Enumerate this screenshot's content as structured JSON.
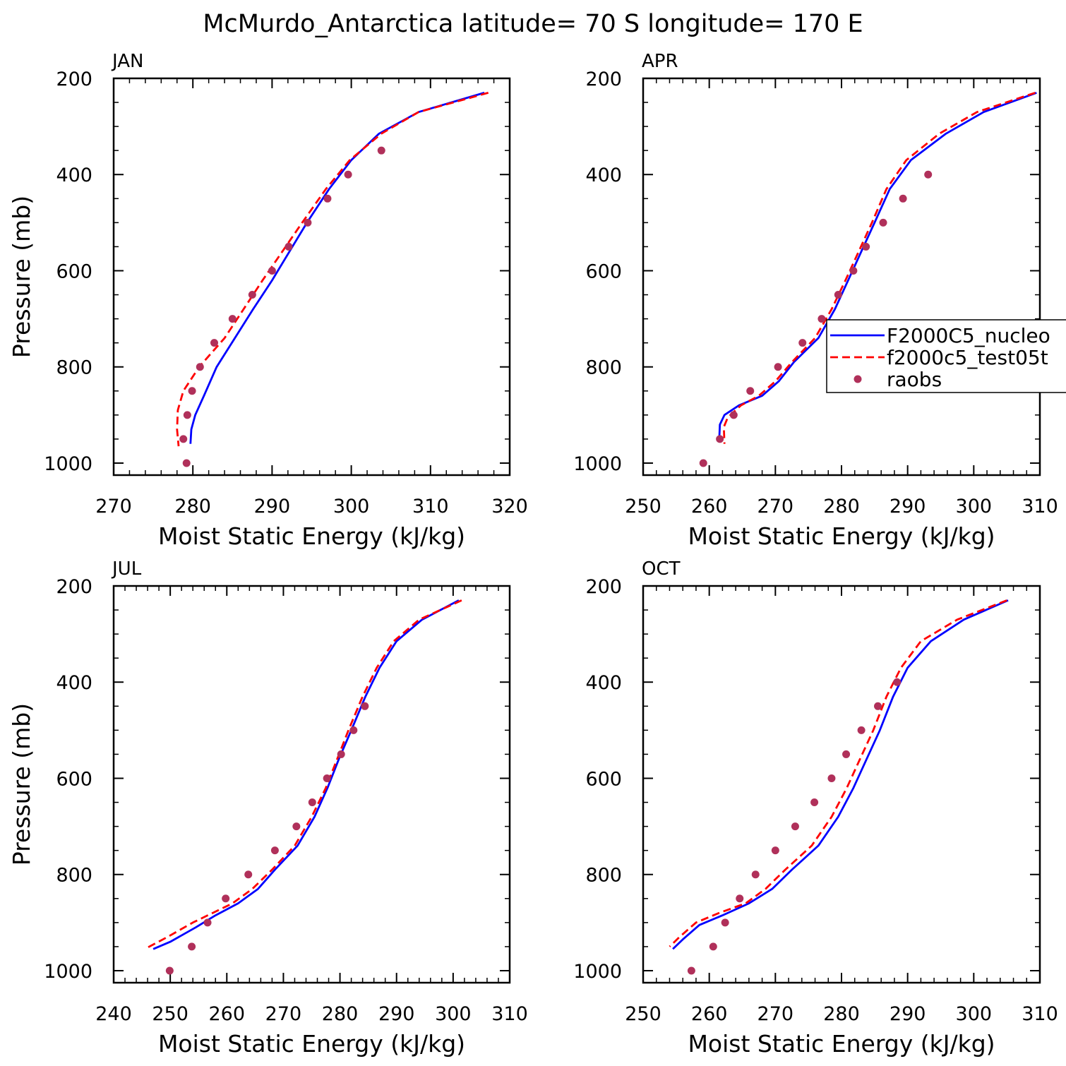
{
  "title": "McMurdo_Antarctica  latitude= 70 S longitude= 170 E",
  "colors": {
    "model1": "#0000ff",
    "model2": "#ff0000",
    "obs": "#b0305a",
    "axis": "#000000"
  },
  "legend": {
    "entries": [
      {
        "label": "F2000C5_nucleo",
        "style": "solid",
        "color": "#0000ff"
      },
      {
        "label": "f2000c5_test05t",
        "style": "dashed",
        "color": "#ff0000"
      },
      {
        "label": "raobs",
        "style": "dot",
        "color": "#b0305a"
      }
    ]
  },
  "chart_data": [
    {
      "type": "line",
      "panel": "JAN",
      "title": "JAN",
      "xlabel": "Moist Static Energy (kJ/kg)",
      "ylabel": "Pressure (mb)",
      "xlim": [
        270,
        320
      ],
      "ylim": [
        200,
        1025
      ],
      "xticks": [
        270,
        280,
        290,
        300,
        310,
        320
      ],
      "yticks": [
        200,
        400,
        600,
        800,
        1000
      ],
      "series": [
        {
          "name": "F2000C5_nucleo",
          "style": "solid",
          "x": [
            316.8,
            308.5,
            303.5,
            300.0,
            297.2,
            294.4,
            292.2,
            290.0,
            287.6,
            285.3,
            283.0,
            281.4,
            280.3,
            279.8,
            279.7
          ],
          "y": [
            230,
            270,
            315,
            370,
            430,
            500,
            560,
            620,
            680,
            740,
            800,
            860,
            900,
            930,
            960
          ]
        },
        {
          "name": "f2000c5_test05t",
          "style": "dashed",
          "x": [
            317.3,
            308.5,
            303.8,
            299.8,
            296.8,
            293.8,
            291.3,
            288.8,
            286.4,
            284.0,
            280.8,
            278.8,
            278.1,
            278.0,
            278.2
          ],
          "y": [
            230,
            270,
            315,
            370,
            430,
            500,
            560,
            620,
            680,
            740,
            800,
            850,
            890,
            930,
            965
          ]
        },
        {
          "name": "raobs",
          "style": "dot",
          "x": [
            303.8,
            299.6,
            297.0,
            294.5,
            292.1,
            290.0,
            287.5,
            285.0,
            282.7,
            280.9,
            279.9,
            279.3,
            278.8,
            279.2
          ],
          "y": [
            350,
            400,
            450,
            500,
            550,
            600,
            650,
            700,
            750,
            800,
            850,
            900,
            950,
            1000
          ]
        }
      ]
    },
    {
      "type": "line",
      "panel": "APR",
      "title": "APR",
      "xlabel": "Moist Static Energy (kJ/kg)",
      "ylabel": "",
      "xlim": [
        250,
        310
      ],
      "ylim": [
        200,
        1025
      ],
      "xticks": [
        250,
        260,
        270,
        280,
        290,
        300,
        310
      ],
      "yticks": [
        200,
        400,
        600,
        800,
        1000
      ],
      "series": [
        {
          "name": "F2000C5_nucleo",
          "style": "solid",
          "x": [
            309.5,
            301.5,
            295.8,
            290.5,
            287.3,
            285.0,
            283.0,
            281.0,
            279.0,
            276.5,
            272.8,
            270.5,
            268.0,
            264.5,
            262.3,
            261.6,
            261.5
          ],
          "y": [
            230,
            270,
            315,
            370,
            430,
            500,
            560,
            620,
            680,
            740,
            790,
            830,
            860,
            880,
            900,
            920,
            955
          ]
        },
        {
          "name": "f2000c5_test05t",
          "style": "dashed",
          "x": [
            309.3,
            300.5,
            294.8,
            289.8,
            286.8,
            284.6,
            282.6,
            280.6,
            278.5,
            276.0,
            272.5,
            270.0,
            267.5,
            264.8,
            262.8,
            262.2,
            262.3
          ],
          "y": [
            230,
            270,
            315,
            370,
            430,
            500,
            560,
            620,
            680,
            740,
            790,
            830,
            860,
            880,
            905,
            925,
            960
          ]
        },
        {
          "name": "raobs",
          "style": "dot",
          "x": [
            293.1,
            289.3,
            286.3,
            283.7,
            281.8,
            279.5,
            277.0,
            274.1,
            270.4,
            266.2,
            263.7,
            261.6,
            259.1
          ],
          "y": [
            400,
            450,
            500,
            550,
            600,
            650,
            700,
            750,
            800,
            850,
            900,
            950,
            1000
          ]
        }
      ]
    },
    {
      "type": "line",
      "panel": "JUL",
      "title": "JUL",
      "xlabel": "Moist Static Energy (kJ/kg)",
      "ylabel": "Pressure (mb)",
      "xlim": [
        240,
        310
      ],
      "ylim": [
        200,
        1025
      ],
      "xticks": [
        240,
        250,
        260,
        270,
        280,
        290,
        300,
        310
      ],
      "yticks": [
        200,
        400,
        600,
        800,
        1000
      ],
      "series": [
        {
          "name": "F2000C5_nucleo",
          "style": "solid",
          "x": [
            301.0,
            294.5,
            290.0,
            287.0,
            284.5,
            282.0,
            279.8,
            277.8,
            275.5,
            272.5,
            268.5,
            265.5,
            262.0,
            258.0,
            254.5,
            250.0,
            247.0
          ],
          "y": [
            230,
            270,
            315,
            370,
            430,
            500,
            560,
            620,
            680,
            740,
            790,
            830,
            860,
            885,
            910,
            940,
            955
          ]
        },
        {
          "name": "f2000c5_test05t",
          "style": "dashed",
          "x": [
            301.5,
            294.0,
            289.5,
            286.5,
            284.0,
            281.5,
            279.5,
            277.5,
            275.0,
            272.0,
            268.0,
            264.5,
            261.0,
            257.5,
            254.0,
            249.5,
            245.5
          ],
          "y": [
            230,
            270,
            315,
            370,
            430,
            500,
            560,
            620,
            680,
            740,
            790,
            830,
            860,
            880,
            900,
            930,
            955
          ]
        },
        {
          "name": "raobs",
          "style": "dot",
          "x": [
            284.4,
            282.4,
            280.2,
            277.7,
            275.1,
            272.3,
            268.5,
            263.8,
            259.8,
            256.6,
            253.8,
            249.9
          ],
          "y": [
            450,
            500,
            550,
            600,
            650,
            700,
            750,
            800,
            850,
            900,
            950,
            1000
          ]
        }
      ]
    },
    {
      "type": "line",
      "panel": "OCT",
      "title": "OCT",
      "xlabel": "Moist Static Energy (kJ/kg)",
      "ylabel": "",
      "xlim": [
        250,
        310
      ],
      "ylim": [
        200,
        1025
      ],
      "xticks": [
        250,
        260,
        270,
        280,
        290,
        300,
        310
      ],
      "yticks": [
        200,
        400,
        600,
        800,
        1000
      ],
      "series": [
        {
          "name": "F2000C5_nucleo",
          "style": "solid",
          "x": [
            305.2,
            298.5,
            293.5,
            290.0,
            287.8,
            285.8,
            283.8,
            281.8,
            279.5,
            276.5,
            272.5,
            269.5,
            266.0,
            262.0,
            258.5,
            256.0,
            254.5
          ],
          "y": [
            230,
            270,
            315,
            370,
            430,
            500,
            560,
            620,
            680,
            740,
            790,
            830,
            860,
            885,
            905,
            935,
            955
          ]
        },
        {
          "name": "f2000c5_test05t",
          "style": "dashed",
          "x": [
            305.0,
            297.5,
            292.0,
            289.0,
            286.8,
            284.8,
            282.8,
            280.8,
            278.5,
            275.5,
            271.5,
            268.5,
            265.5,
            261.5,
            258.0,
            255.5,
            254.0
          ],
          "y": [
            230,
            270,
            315,
            370,
            430,
            500,
            560,
            620,
            680,
            740,
            790,
            830,
            860,
            880,
            900,
            930,
            950
          ]
        },
        {
          "name": "raobs",
          "style": "dot",
          "x": [
            288.4,
            285.5,
            283.0,
            280.7,
            278.5,
            275.9,
            273.0,
            270.0,
            267.0,
            264.6,
            262.4,
            260.6,
            257.3
          ],
          "y": [
            400,
            450,
            500,
            550,
            600,
            650,
            700,
            750,
            800,
            850,
            900,
            950,
            1000
          ]
        }
      ]
    }
  ]
}
